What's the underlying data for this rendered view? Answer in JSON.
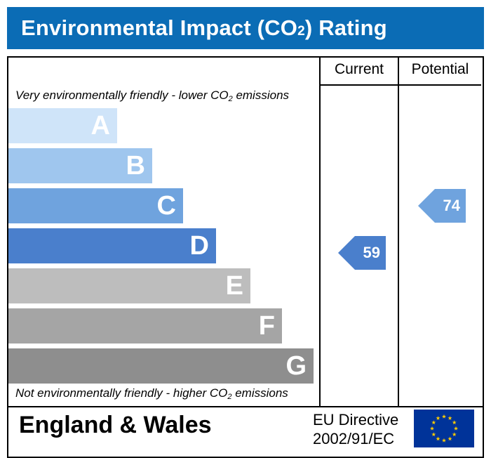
{
  "header": {
    "title_main": "Environmental Impact (CO",
    "title_sub": "2",
    "title_end": ") Rating"
  },
  "columns": {
    "current": "Current",
    "potential": "Potential"
  },
  "captions": {
    "top_main": "Very environmentally friendly - lower CO",
    "top_sub": "2",
    "top_end": " emissions",
    "bottom_main": "Not environmentally friendly - higher CO",
    "bottom_sub": "2",
    "bottom_end": " emissions"
  },
  "bands": [
    {
      "letter": "A",
      "color": "#cfe4f9"
    },
    {
      "letter": "B",
      "color": "#9fc6ee"
    },
    {
      "letter": "C",
      "color": "#6fa3de"
    },
    {
      "letter": "D",
      "color": "#4a7fcc"
    },
    {
      "letter": "E",
      "color": "#bdbdbd"
    },
    {
      "letter": "F",
      "color": "#a5a5a5"
    },
    {
      "letter": "G",
      "color": "#8e8e8e"
    }
  ],
  "ratings": {
    "current": {
      "value": "59",
      "band": "D",
      "color": "#4a7fcc"
    },
    "potential": {
      "value": "74",
      "band": "C",
      "color": "#6fa3de"
    }
  },
  "footer": {
    "country": "England & Wales",
    "directive_line1": "EU Directive",
    "directive_line2": "2002/91/EC",
    "flag_icon": "eu-flag-icon"
  }
}
